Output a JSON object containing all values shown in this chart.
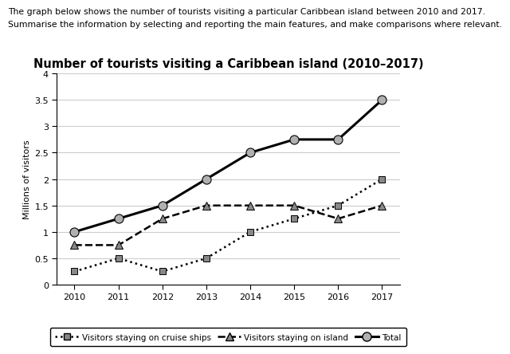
{
  "title": "Number of tourists visiting a Caribbean island (2010–2017)",
  "header_line1": "The graph below shows the number of tourists visiting a particular Caribbean island between 2010 and 2017.",
  "header_line2": "Summarise the information by selecting and reporting the main features, and make comparisons where relevant.",
  "ylabel": "Millions of visitors",
  "years": [
    2010,
    2011,
    2012,
    2013,
    2014,
    2015,
    2016,
    2017
  ],
  "cruise_ships": [
    0.25,
    0.5,
    0.25,
    0.5,
    1.0,
    1.25,
    1.5,
    2.0
  ],
  "on_island": [
    0.75,
    0.75,
    1.25,
    1.5,
    1.5,
    1.5,
    1.25,
    1.5
  ],
  "total": [
    1.0,
    1.25,
    1.5,
    2.0,
    2.5,
    2.75,
    2.75,
    3.5
  ],
  "ylim": [
    0,
    4
  ],
  "yticks": [
    0,
    0.5,
    1.0,
    1.5,
    2.0,
    2.5,
    3.0,
    3.5,
    4.0
  ],
  "ytick_labels": [
    "0",
    "0.5",
    "1",
    "1.5",
    "2",
    "2.5",
    "3",
    "3.5",
    "4"
  ],
  "grid_color": "#cccccc",
  "line_color": "#000000",
  "marker_fill_gray": "#888888",
  "marker_fill_light": "#b0b0b0",
  "title_fontsize": 10.5,
  "tick_fontsize": 8,
  "ylabel_fontsize": 8,
  "header_fontsize": 7.8,
  "legend_fontsize": 7.5
}
